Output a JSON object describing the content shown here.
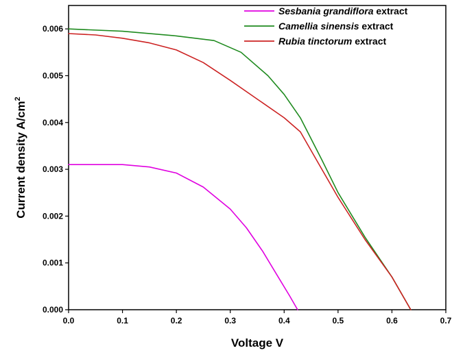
{
  "chart_data": {
    "type": "line",
    "xlabel": "Voltage V",
    "ylabel_main": "Current density A/cm",
    "ylabel_sup": "2",
    "xlim": [
      0.0,
      0.7
    ],
    "ylim": [
      0.0,
      0.0065
    ],
    "x_ticks": [
      "0.0",
      "0.1",
      "0.2",
      "0.3",
      "0.4",
      "0.5",
      "0.6",
      "0.7"
    ],
    "y_ticks": [
      "0.000",
      "0.001",
      "0.002",
      "0.003",
      "0.004",
      "0.005",
      "0.006"
    ],
    "grid": false,
    "legend_position": "top-right",
    "series": [
      {
        "name": "Sesbania grandiflora extract",
        "name_italic": "Sesbania grandiflora",
        "name_plain": " extract",
        "color": "#e000e0",
        "points": [
          [
            0.0,
            0.0031
          ],
          [
            0.05,
            0.0031
          ],
          [
            0.1,
            0.0031
          ],
          [
            0.15,
            0.00305
          ],
          [
            0.2,
            0.00292
          ],
          [
            0.25,
            0.00262
          ],
          [
            0.3,
            0.00215
          ],
          [
            0.33,
            0.00175
          ],
          [
            0.36,
            0.00125
          ],
          [
            0.39,
            0.00068
          ],
          [
            0.41,
            0.0003
          ],
          [
            0.425,
            0.0
          ]
        ]
      },
      {
        "name": "Camellia sinensis extract",
        "name_italic": "Camellia sinensis",
        "name_plain": " extract",
        "color": "#1e8a1e",
        "points": [
          [
            0.0,
            0.006
          ],
          [
            0.1,
            0.00595
          ],
          [
            0.2,
            0.00585
          ],
          [
            0.27,
            0.00575
          ],
          [
            0.32,
            0.0055
          ],
          [
            0.37,
            0.005
          ],
          [
            0.4,
            0.0046
          ],
          [
            0.43,
            0.0041
          ],
          [
            0.47,
            0.0032
          ],
          [
            0.5,
            0.0025
          ],
          [
            0.55,
            0.00155
          ],
          [
            0.6,
            0.0007
          ],
          [
            0.635,
            0.0
          ]
        ]
      },
      {
        "name": "Rubia tinctorum extract",
        "name_italic": "Rubia tinctorum",
        "name_plain": " extract",
        "color": "#cc2222",
        "points": [
          [
            0.0,
            0.0059
          ],
          [
            0.05,
            0.00587
          ],
          [
            0.1,
            0.0058
          ],
          [
            0.15,
            0.0057
          ],
          [
            0.2,
            0.00555
          ],
          [
            0.25,
            0.00528
          ],
          [
            0.3,
            0.0049
          ],
          [
            0.35,
            0.0045
          ],
          [
            0.4,
            0.0041
          ],
          [
            0.43,
            0.0038
          ],
          [
            0.47,
            0.003
          ],
          [
            0.5,
            0.0024
          ],
          [
            0.55,
            0.0015
          ],
          [
            0.6,
            0.0007
          ],
          [
            0.635,
            0.0
          ]
        ]
      }
    ]
  }
}
